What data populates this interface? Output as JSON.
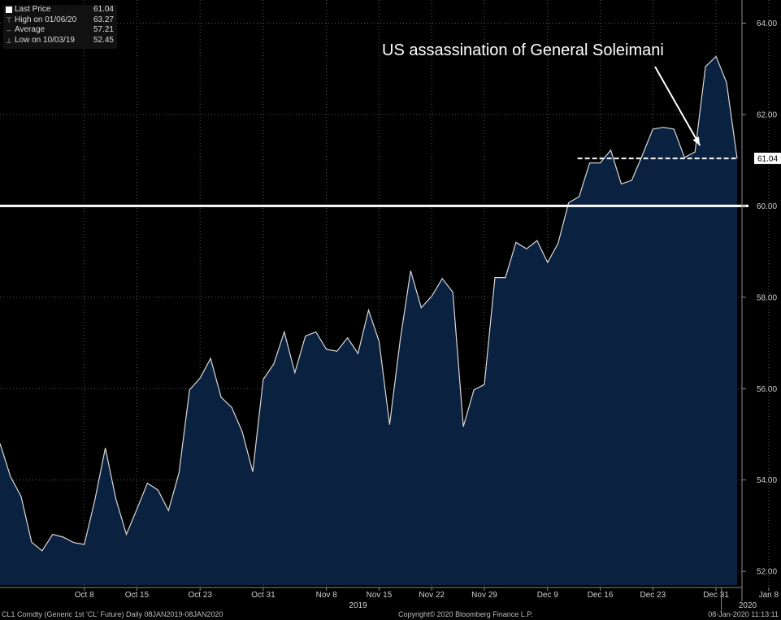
{
  "legend": {
    "rows": [
      {
        "icon": "white-square-icon",
        "label": "Last Price",
        "value": "61.04"
      },
      {
        "icon": "high-marker-icon",
        "label": "High on 01/06/20",
        "value": "63.27"
      },
      {
        "icon": "average-marker-icon",
        "label": "Average",
        "value": "57.21"
      },
      {
        "icon": "low-marker-icon",
        "label": "Low on 10/03/19",
        "value": "52.45"
      }
    ]
  },
  "footer": {
    "left": "CL1 Comdty (Generic 1st 'CL' Future)  Daily 08JAN2019-08JAN2020",
    "center": "Copyright© 2020 Bloomberg Finance L.P.",
    "right": "08-Jan-2020 11:13:11"
  },
  "colors": {
    "background": "#000000",
    "area_fill": "#0b2140",
    "line": "#d8d8d8",
    "reference_line": "#ffffff",
    "grid": "#5a5a5a",
    "last_price_tag": "#ffffff"
  },
  "chart_data": {
    "type": "area",
    "title": "",
    "xlabel": "",
    "ylabel": "",
    "ylim": [
      51.7,
      64.4
    ],
    "y_ticks": [
      52,
      54,
      56,
      58,
      60,
      62,
      64
    ],
    "y_tick_labels": [
      "52.00",
      "54.00",
      "56.00",
      "58.00",
      "60.00",
      "62.00",
      "64.00"
    ],
    "x_ticks": [
      {
        "label": "Oct 8",
        "index": 8
      },
      {
        "label": "Oct 15",
        "index": 13
      },
      {
        "label": "Oct 23",
        "index": 19
      },
      {
        "label": "Oct 31",
        "index": 25
      },
      {
        "label": "Nov 8",
        "index": 31
      },
      {
        "label": "Nov 15",
        "index": 36
      },
      {
        "label": "Nov 22",
        "index": 41
      },
      {
        "label": "Nov 29",
        "index": 46
      },
      {
        "label": "Dec 9",
        "index": 52
      },
      {
        "label": "Dec 16",
        "index": 57
      },
      {
        "label": "Dec 23",
        "index": 62
      },
      {
        "label": "Dec 31",
        "index": 68
      },
      {
        "label": "Jan 8",
        "index": 73
      }
    ],
    "year_labels": [
      {
        "label": "2019",
        "index": 34
      },
      {
        "label": "2020",
        "index": 71
      }
    ],
    "year_divider_index": 68.5,
    "series": [
      {
        "name": "Last Price",
        "values": [
          54.8,
          54.07,
          53.64,
          52.64,
          52.45,
          52.81,
          52.75,
          52.63,
          52.59,
          53.55,
          54.7,
          53.59,
          52.81,
          53.36,
          53.93,
          53.78,
          53.33,
          54.16,
          55.97,
          56.23,
          56.66,
          55.81,
          55.59,
          55.06,
          54.18,
          56.2,
          56.54,
          57.24,
          56.35,
          57.15,
          57.24,
          56.86,
          56.82,
          57.11,
          56.77,
          57.72,
          57.03,
          55.21,
          57.06,
          58.58,
          57.77,
          58.02,
          58.41,
          58.11,
          55.17,
          55.97,
          56.09,
          58.43,
          58.43,
          59.2,
          59.06,
          59.24,
          58.76,
          59.18,
          60.07,
          60.2,
          60.94,
          60.94,
          61.22,
          60.48,
          60.56,
          61.11,
          61.68,
          61.72,
          61.68,
          61.06,
          61.18,
          63.05,
          63.27,
          62.7,
          61.04
        ]
      }
    ],
    "reference_lines": [
      {
        "type": "horizontal",
        "value": 60.0,
        "style": "solid"
      },
      {
        "type": "horizontal",
        "value": 61.04,
        "style": "dashed",
        "from_index": 55
      }
    ],
    "last_value_label": "61.04",
    "annotations": [
      {
        "text": "US assassination of General Soleimani",
        "arrow_to_index": 66,
        "arrow_to_value": 61.18
      }
    ]
  }
}
